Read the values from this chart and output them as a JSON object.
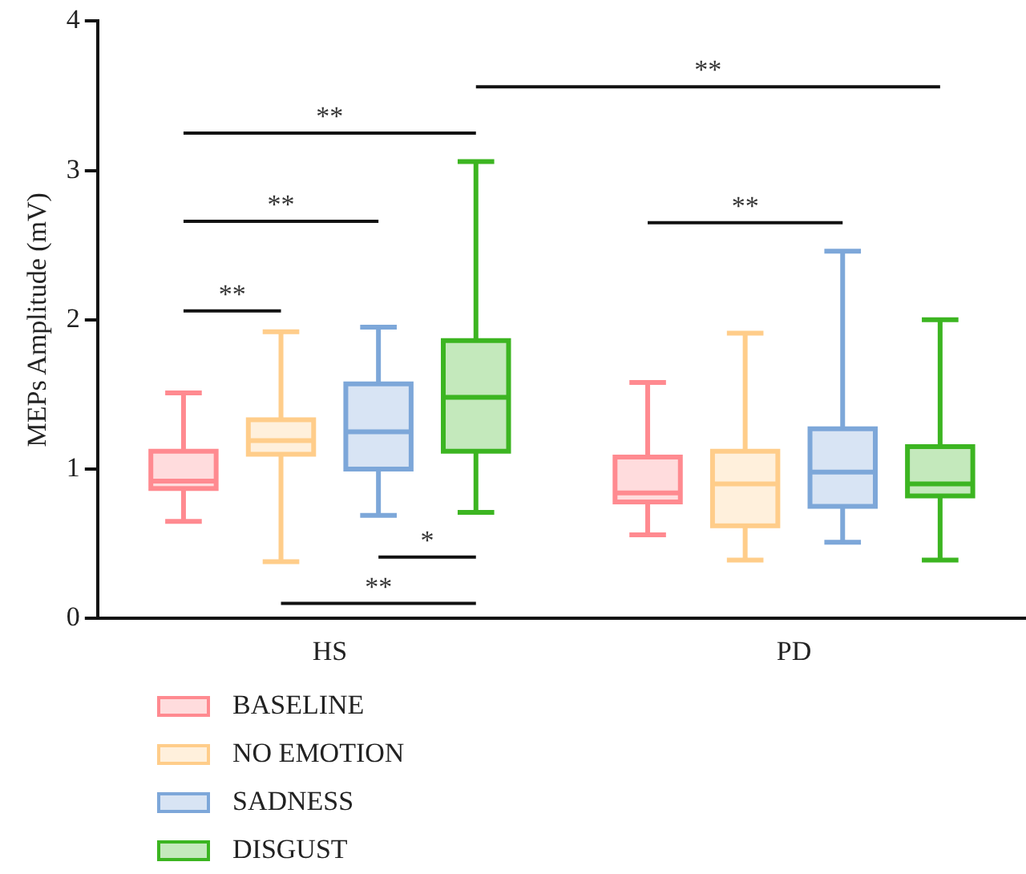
{
  "chart_data": {
    "type": "box",
    "ylabel": "MEPs Amplitude (mV)",
    "categories": [
      "HS",
      "PD"
    ],
    "ylim": [
      0,
      4
    ],
    "yticks": [
      0,
      1,
      2,
      3,
      4
    ],
    "grid": false,
    "legend": "bottom",
    "series": [
      {
        "name": "BASELINE",
        "color": "#ff8a90",
        "boxes": [
          {
            "low": 0.65,
            "q1": 0.87,
            "median": 0.92,
            "q3": 1.12,
            "high": 1.51
          },
          {
            "low": 0.56,
            "q1": 0.78,
            "median": 0.84,
            "q3": 1.08,
            "high": 1.58
          }
        ]
      },
      {
        "name": "NO EMOTION",
        "color": "#ffcd8a",
        "boxes": [
          {
            "low": 0.38,
            "q1": 1.1,
            "median": 1.19,
            "q3": 1.33,
            "high": 1.92
          },
          {
            "low": 0.39,
            "q1": 0.62,
            "median": 0.9,
            "q3": 1.12,
            "high": 1.91
          }
        ]
      },
      {
        "name": "SADNESS",
        "color": "#7da7d9",
        "boxes": [
          {
            "low": 0.69,
            "q1": 1.0,
            "median": 1.25,
            "q3": 1.57,
            "high": 1.95
          },
          {
            "low": 0.51,
            "q1": 0.75,
            "median": 0.98,
            "q3": 1.27,
            "high": 2.46
          }
        ]
      },
      {
        "name": "DISGUST",
        "color": "#3cb521",
        "boxes": [
          {
            "low": 0.71,
            "q1": 1.12,
            "median": 1.48,
            "q3": 1.86,
            "high": 3.06
          },
          {
            "low": 0.39,
            "q1": 0.82,
            "median": 0.9,
            "q3": 1.15,
            "high": 2.0
          }
        ]
      }
    ],
    "annotations": [
      "**",
      "**",
      "**",
      "**",
      "*",
      "**",
      "**"
    ]
  }
}
